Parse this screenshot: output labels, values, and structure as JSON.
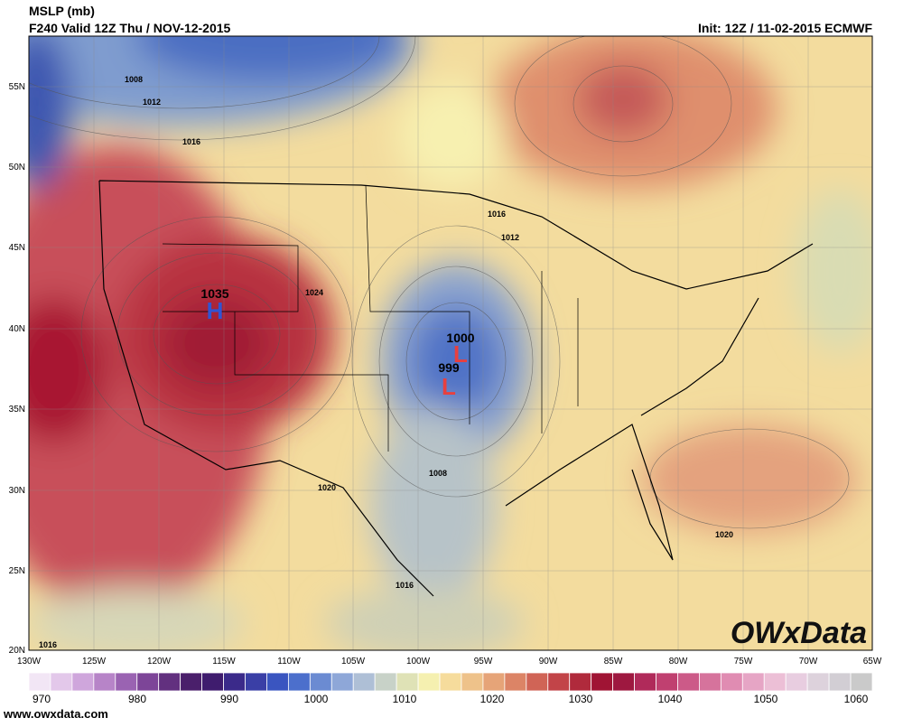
{
  "header": {
    "title": "MSLP (mb)",
    "valid": "F240 Valid 12Z Thu / NOV-12-2015",
    "init": "Init: 12Z / 11-02-2015 ECMWF"
  },
  "map": {
    "lat_labels": [
      "55N",
      "50N",
      "45N",
      "40N",
      "35N",
      "30N",
      "25N",
      "20N"
    ],
    "lon_labels": [
      "130W",
      "125W",
      "120W",
      "115W",
      "110W",
      "105W",
      "100W",
      "95W",
      "90W",
      "85W",
      "80W",
      "75W",
      "70W",
      "65W"
    ],
    "contour_labels": [
      "1008",
      "1012",
      "1016",
      "1024",
      "1016",
      "1012",
      "1020",
      "1008",
      "1016",
      "1016",
      "1020"
    ],
    "pressure_centers": [
      {
        "symbol": "H",
        "value": "1035"
      },
      {
        "symbol": "L",
        "value": "1000"
      },
      {
        "symbol": "L",
        "value": "999"
      }
    ]
  },
  "colorbar": {
    "labels": [
      "970",
      "980",
      "990",
      "1000",
      "1010",
      "1020",
      "1030",
      "1040",
      "1050",
      "1060"
    ]
  },
  "footer": {
    "website": "www.owxdata.com",
    "logo": "OWxData"
  }
}
